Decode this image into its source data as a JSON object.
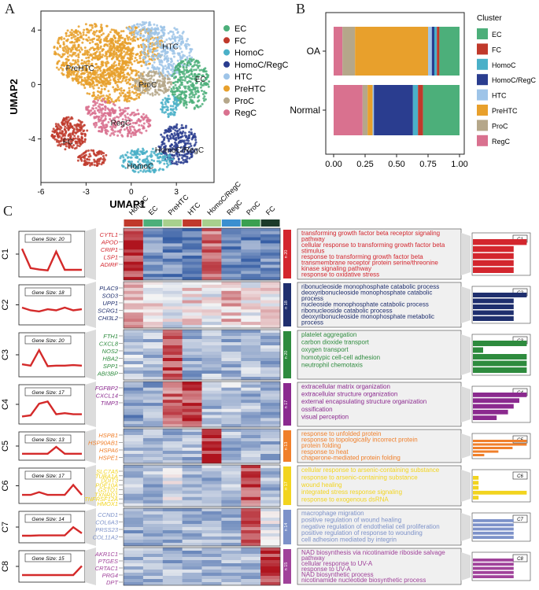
{
  "panels": {
    "a": "A",
    "b": "B",
    "c": "C"
  },
  "colors": {
    "EC": "#4caf7a",
    "FC": "#c0392b",
    "HomoC": "#4ab0c8",
    "HomoC/RegC": "#2a3d8f",
    "HTC": "#9ec4e8",
    "PreHTC": "#e8a02c",
    "ProC": "#b5a78a",
    "RegC": "#d9718f"
  },
  "chart_data": [
    {
      "type": "scatter",
      "title": "",
      "xlabel": "UMAP1",
      "ylabel": "UMAP2",
      "xticks": [
        "-6",
        "-3",
        "0",
        "3"
      ],
      "yticks": [
        "4",
        "0",
        "-4"
      ],
      "xlim": [
        -6,
        5.5
      ],
      "ylim": [
        -7.2,
        5.4
      ],
      "legend": [
        "EC",
        "FC",
        "HomoC",
        "HomoC/RegC",
        "HTC",
        "PreHTC",
        "ProC",
        "RegC"
      ],
      "cluster_labels": [
        {
          "name": "HTC",
          "x": 2.6,
          "y": 2.6
        },
        {
          "name": "PreHTC",
          "x": -3.4,
          "y": 1.0
        },
        {
          "name": "ProC",
          "x": 1.1,
          "y": -0.2
        },
        {
          "name": "EC",
          "x": 4.6,
          "y": 0.2
        },
        {
          "name": "RegC",
          "x": -0.7,
          "y": -3.0
        },
        {
          "name": "FC",
          "x": -4.2,
          "y": -4.4
        },
        {
          "name": "HomoC/RegC",
          "x": 3.2,
          "y": -5.0
        },
        {
          "name": "HomoC",
          "x": 0.6,
          "y": -6.2
        }
      ]
    },
    {
      "type": "bar",
      "stacked": true,
      "orientation": "horizontal",
      "legend_title": "Cluster",
      "categories": [
        "OA",
        "Normal"
      ],
      "xticks": [
        "0.00",
        "0.25",
        "0.50",
        "0.75",
        "1.00"
      ],
      "xlim": [
        0,
        1
      ],
      "series": [
        {
          "name": "RegC",
          "values": [
            0.07,
            0.23
          ]
        },
        {
          "name": "ProC",
          "values": [
            0.1,
            0.04
          ]
        },
        {
          "name": "PreHTC",
          "values": [
            0.58,
            0.04
          ]
        },
        {
          "name": "HTC",
          "values": [
            0.03,
            0.01
          ]
        },
        {
          "name": "HomoC/RegC",
          "values": [
            0.02,
            0.31
          ]
        },
        {
          "name": "HomoC",
          "values": [
            0.02,
            0.04
          ]
        },
        {
          "name": "FC",
          "values": [
            0.02,
            0.04
          ]
        },
        {
          "name": "EC",
          "values": [
            0.16,
            0.29
          ]
        }
      ],
      "legend": [
        "EC",
        "FC",
        "HomoC",
        "HomoC/RegC",
        "HTC",
        "PreHTC",
        "ProC",
        "RegC"
      ]
    },
    {
      "type": "heatmap",
      "columns": [
        "HomoC",
        "EC",
        "PreHTC",
        "HTC",
        "HomoC/RegC",
        "RegC",
        "ProC",
        "FC"
      ],
      "column_colors": [
        "#c0392b",
        "#4caf7a",
        "#a8d08d",
        "#c0392b",
        "#a8d08d",
        "#3a8fd0",
        "#3aa050",
        "#1c3a2a"
      ],
      "clusters": [
        {
          "id": "C1",
          "gene_size": "Gene Size: 20",
          "n": "n 20",
          "color": "#d3262e",
          "profile": [
            0.88,
            0.2,
            0.15,
            0.12,
            0.78,
            0.14,
            0.14,
            0.14
          ],
          "genes": [
            "CYTL1",
            "APOD",
            "CRIP1",
            "LSP1",
            "ADIRF"
          ],
          "terms": [
            "transforming growth factor beta receptor signaling",
            "pathway",
            "cellular response to transforming growth factor beta",
            "stimulus",
            "response to transforming growth factor beta",
            "transmembrane receptor protein serine/threonine",
            "kinase signaling pathway",
            "response to oxidative stress"
          ],
          "bars": [
            0.95,
            0.72,
            0.72,
            0.72,
            0.72
          ]
        },
        {
          "id": "C2",
          "gene_size": "Gene Size: 18",
          "n": "n 18",
          "color": "#1f2f6e",
          "profile": [
            0.62,
            0.5,
            0.45,
            0.55,
            0.5,
            0.62,
            0.5,
            0.55
          ],
          "genes": [
            "PLAC9",
            "SOD3",
            "UPP1",
            "SCRG1",
            "CHI3L2"
          ],
          "terms": [
            "ribonucleoside monophosphate catabolic process",
            "deoxyribonucleoside monophosphate catabolic",
            "process",
            "nucleoside monophosphate catabolic process",
            "ribonucleoside catabolic process",
            "deoxyribonucleoside monophosphate metabolic",
            "process"
          ],
          "bars": [
            0.95,
            0.72,
            0.72,
            0.72,
            0.72
          ]
        },
        {
          "id": "C3",
          "gene_size": "Gene Size: 20",
          "n": "n 20",
          "color": "#2e8b3e",
          "profile": [
            0.35,
            0.3,
            0.88,
            0.28,
            0.3,
            0.3,
            0.32,
            0.3
          ],
          "genes": [
            "FTH1",
            "CXCL8",
            "NOS2",
            "HBA2",
            "SPP1",
            "ABI3BP"
          ],
          "terms": [
            "platelet aggregation",
            "carbon dioxide transport",
            "oxygen transport",
            "homotypic cell-cell adhesion",
            "neutrophil chemotaxis"
          ],
          "bars": [
            0.95,
            0.18,
            0.95,
            0.95,
            0.95
          ]
        },
        {
          "id": "C4",
          "gene_size": "Gene Size: 17",
          "n": "n 17",
          "color": "#8b2a8f",
          "profile": [
            0.2,
            0.25,
            0.78,
            0.88,
            0.3,
            0.35,
            0.3,
            0.3
          ],
          "genes": [
            "FGFBP2",
            "CXCL14",
            "TIMP3"
          ],
          "terms": [
            "extracellular matrix organization",
            "extracellular structure organization",
            "external encapsulating structure organization",
            "ossification",
            "visual perception"
          ],
          "bars": [
            0.95,
            0.82,
            0.72,
            0.62,
            0.42
          ]
        },
        {
          "id": "C5",
          "gene_size": "Gene Size: 13",
          "n": "n 13",
          "color": "#f07f2a",
          "profile": [
            0.3,
            0.3,
            0.3,
            0.3,
            0.92,
            0.3,
            0.3,
            0.3
          ],
          "genes": [
            "HSPB1",
            "HSP90AB1",
            "HSPA6",
            "HSPE1"
          ],
          "terms": [
            "response to unfolded protein",
            "response to topologically incorrect protein",
            "protein folding",
            "response to heat",
            "chaperone-mediated protein folding"
          ],
          "bars": [
            0.95,
            0.95,
            0.7,
            0.45,
            0.2
          ]
        },
        {
          "id": "C6",
          "gene_size": "Gene Size: 17",
          "n": "n 17",
          "color": "#f2d41f",
          "profile": [
            0.3,
            0.3,
            0.45,
            0.3,
            0.3,
            0.3,
            0.85,
            0.3
          ],
          "genes": [
            "SLC7A5",
            "TUBA1A",
            "DDIT3",
            "PDE10A",
            "GSTO1",
            "TXNRD1",
            "TNFRSF12A",
            "HMOX1"
          ],
          "terms": [
            "cellular response to arsenic-containing substance",
            "response to arsenic-containing substance",
            "wound healing",
            "integrated stress response signaling",
            "response to exogenous dsRNA"
          ],
          "bars": [
            0.1,
            0.1,
            0.1,
            0.95,
            0.1
          ]
        },
        {
          "id": "C7",
          "gene_size": "Gene Size: 14",
          "n": "n 14",
          "color": "#7d92c9",
          "profile": [
            0.28,
            0.28,
            0.3,
            0.3,
            0.3,
            0.3,
            0.88,
            0.45
          ],
          "genes": [
            "CCND1",
            "COL6A3",
            "PRSS23",
            "COL11A2"
          ],
          "terms": [
            "macrophage migration",
            "positive regulation of wound healing",
            "negative regulation of endothelial cell proliferation",
            "positive regulation of response to wounding",
            "cell adhesion mediated by integrin"
          ],
          "bars": [
            0.72,
            0.72,
            0.72,
            0.72,
            0.72
          ]
        },
        {
          "id": "C8",
          "gene_size": "Gene Size: 15",
          "n": "n 15",
          "color": "#a0429a",
          "profile": [
            0.28,
            0.28,
            0.28,
            0.28,
            0.28,
            0.28,
            0.28,
            0.92
          ],
          "genes": [
            "AKR1C1",
            "PTGES",
            "CRTAC1",
            "PRG4",
            "DPT"
          ],
          "terms": [
            "NAD biosynthesis via nicotinamide riboside salvage",
            "pathway",
            "cellular response to UV-A",
            "response to UV-A",
            "NAD biosynthetic process",
            "nicotinamide nucleotide biosynthetic process"
          ],
          "bars": [
            0.72,
            0.72,
            0.72,
            0.72,
            0.72
          ]
        }
      ]
    }
  ]
}
